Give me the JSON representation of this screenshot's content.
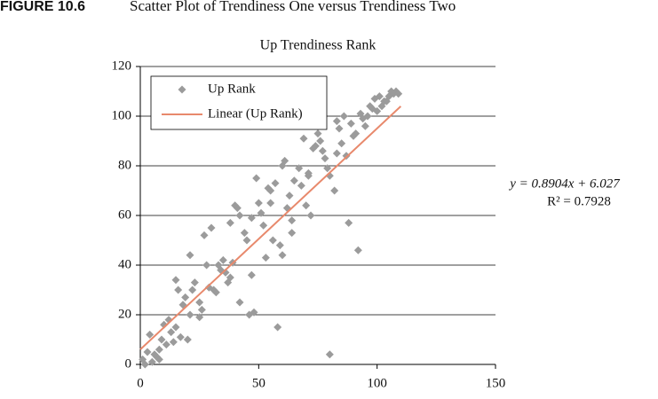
{
  "figure_label": "FIGURE 10.6",
  "figure_caption": "Scatter Plot of Trendiness One versus Trendiness Two",
  "chart_data": {
    "type": "scatter",
    "title": "Up Trendiness Rank",
    "xlim": [
      0,
      150
    ],
    "xticks": [
      0,
      50,
      100,
      150
    ],
    "ylim": [
      0,
      120
    ],
    "yticks": [
      0,
      20,
      40,
      60,
      80,
      100,
      120
    ],
    "grid": true,
    "legend": "top-left",
    "series": [
      {
        "name": "Up Rank",
        "color": "#9b9b9b",
        "x": [
          1,
          2,
          3,
          4,
          5,
          6,
          7,
          8,
          8,
          9,
          10,
          11,
          12,
          13,
          14,
          15,
          15,
          16,
          17,
          18,
          19,
          20,
          21,
          21,
          22,
          23,
          25,
          25,
          26,
          27,
          28,
          29,
          30,
          31,
          32,
          33,
          34,
          35,
          36,
          37,
          38,
          38,
          39,
          40,
          41,
          42,
          42,
          44,
          45,
          46,
          47,
          47,
          48,
          49,
          50,
          51,
          52,
          53,
          54,
          55,
          55,
          56,
          57,
          58,
          59,
          60,
          60,
          61,
          62,
          63,
          64,
          64,
          65,
          67,
          68,
          69,
          70,
          71,
          71,
          72,
          73,
          74,
          75,
          75,
          76,
          77,
          78,
          79,
          80,
          80,
          82,
          83,
          83,
          84,
          85,
          86,
          87,
          88,
          89,
          90,
          91,
          92,
          93,
          94,
          95,
          96,
          97,
          98,
          99,
          100,
          101,
          102,
          103,
          104,
          105,
          106,
          107,
          108,
          109
        ],
        "values": [
          2,
          0,
          5,
          12,
          1,
          4,
          3,
          2,
          6,
          10,
          16,
          8,
          18,
          13,
          9,
          15,
          34,
          30,
          11,
          24,
          27,
          10,
          20,
          44,
          30,
          33,
          25,
          19,
          22,
          52,
          40,
          31,
          55,
          30,
          29,
          40,
          38,
          42,
          37,
          33,
          57,
          35,
          41,
          64,
          63,
          60,
          25,
          53,
          50,
          20,
          36,
          59,
          21,
          75,
          65,
          61,
          56,
          43,
          71,
          65,
          70,
          50,
          73,
          15,
          48,
          80,
          44,
          82,
          63,
          68,
          58,
          53,
          74,
          79,
          72,
          91,
          64,
          76,
          77,
          60,
          87,
          88,
          93,
          96,
          90,
          86,
          83,
          79,
          76,
          4,
          70,
          85,
          98,
          95,
          89,
          100,
          84,
          57,
          97,
          92,
          93,
          46,
          101,
          99,
          96,
          100,
          104,
          103,
          107,
          102,
          108,
          104,
          106,
          106,
          108,
          110,
          109,
          110,
          109
        ]
      },
      {
        "name": "Linear (Up Rank)",
        "color": "#e8896c",
        "x": [
          0,
          110
        ],
        "values": [
          6.027,
          103.97
        ]
      }
    ],
    "annotations": [
      "y = 0.8904x + 6.027",
      "R² = 0.7928"
    ]
  }
}
